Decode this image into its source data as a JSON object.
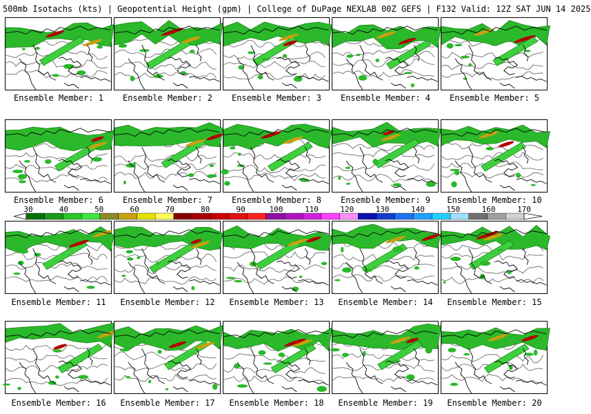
{
  "header": {
    "title": "500mb Isotachs (kts) | Geopotential Height (gpm) | College of DuPage NEXLAB   00Z GEFS | F132 Valid: 12Z SAT JUN 14 2025"
  },
  "members": [
    {
      "label": "Ensemble Member: 1"
    },
    {
      "label": "Ensemble Member: 2"
    },
    {
      "label": "Ensemble Member: 3"
    },
    {
      "label": "Ensemble Member: 4"
    },
    {
      "label": "Ensemble Member: 5"
    },
    {
      "label": "Ensemble Member: 6"
    },
    {
      "label": "Ensemble Member: 7"
    },
    {
      "label": "Ensemble Member: 8"
    },
    {
      "label": "Ensemble Member: 9"
    },
    {
      "label": "Ensemble Member: 10"
    },
    {
      "label": "Ensemble Member: 11"
    },
    {
      "label": "Ensemble Member: 12"
    },
    {
      "label": "Ensemble Member: 13"
    },
    {
      "label": "Ensemble Member: 14"
    },
    {
      "label": "Ensemble Member: 15"
    },
    {
      "label": "Ensemble Member: 16"
    },
    {
      "label": "Ensemble Member: 17"
    },
    {
      "label": "Ensemble Member: 18"
    },
    {
      "label": "Ensemble Member: 19"
    },
    {
      "label": "Ensemble Member: 20"
    }
  ],
  "colorbar": {
    "labels": [
      "30",
      "40",
      "50",
      "60",
      "70",
      "80",
      "90",
      "100",
      "110",
      "120",
      "130",
      "140",
      "150",
      "160",
      "170"
    ],
    "colors": [
      "#0a6e0a",
      "#1a9a1a",
      "#2bc42b",
      "#3ee63e",
      "#8a8a28",
      "#c8a010",
      "#e8e000",
      "#ffff60",
      "#8b0000",
      "#a80000",
      "#c80000",
      "#e01010",
      "#ff2020",
      "#9010a0",
      "#b010c0",
      "#d020e0",
      "#ff40ff",
      "#ff90ff",
      "#1010b0",
      "#1040d0",
      "#2070f0",
      "#20a0ff",
      "#20d0ff",
      "#a0e0ff",
      "#707070",
      "#a0a0a0",
      "#d0d0d0"
    ]
  }
}
